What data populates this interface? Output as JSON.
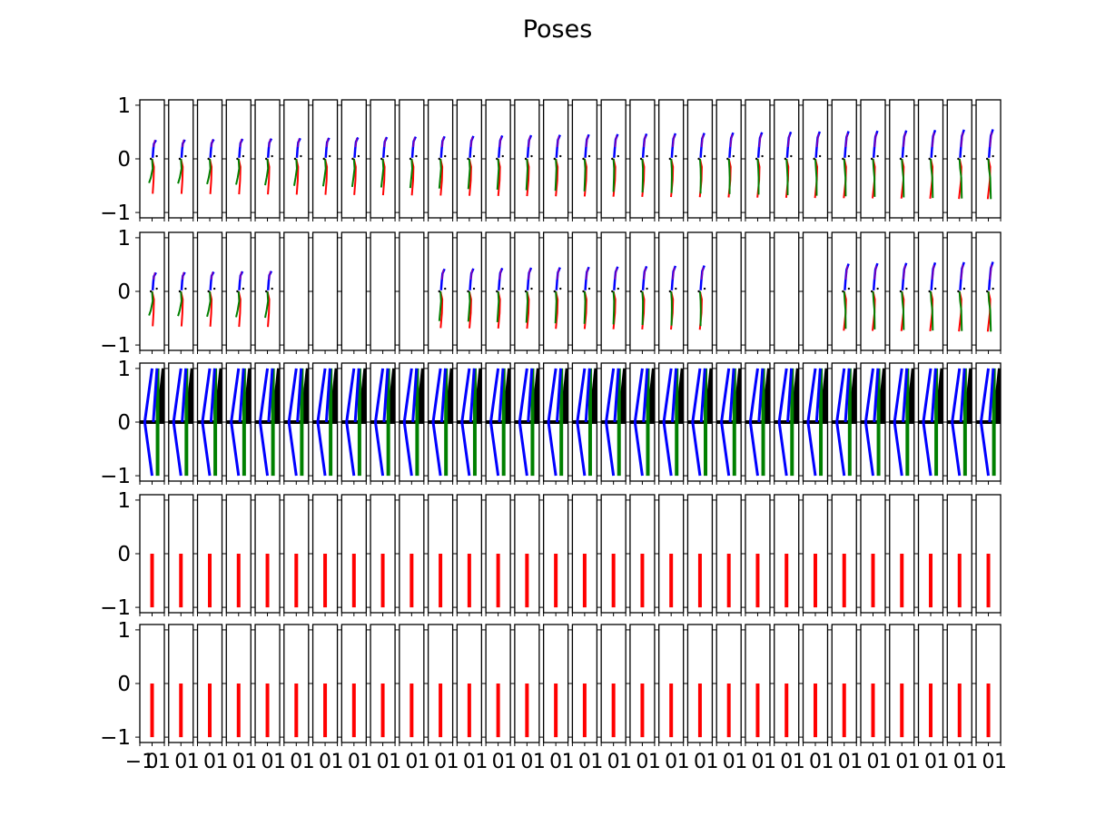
{
  "chart_data": {
    "type": "line",
    "title": "Poses",
    "grid": {
      "rows": 5,
      "cols": 30
    },
    "xlim": [
      -1,
      1
    ],
    "ylim": [
      -1.1,
      1.1
    ],
    "ytick_labels": [
      "1",
      "0",
      "−1"
    ],
    "yticks": [
      1,
      0,
      -1
    ],
    "xtick_labels_first": [
      "−1",
      "0",
      "1"
    ],
    "xtick_labels_other": [
      "0",
      "1"
    ],
    "colors": {
      "red": "#ff0000",
      "green": "#008000",
      "blue": "#0000ff",
      "black": "#000000",
      "purple": "#8800aa"
    },
    "row_types": [
      "pose",
      "pose-sparse",
      "skeleton-template",
      "red-bar",
      "red-bar"
    ],
    "row2_empty_cols": [
      5,
      6,
      7,
      8,
      9,
      20,
      21,
      22,
      23
    ],
    "pose_description": "Per-frame skeleton stick figures; each panel shows red (leg), green (leg), blue (upper body) segments drifting slightly across frames.",
    "template_skeleton": {
      "blue": [
        [
          0.0,
          -1.0
        ],
        [
          -0.6,
          0.0
        ],
        [
          0.0,
          1.0
        ]
      ],
      "green": [
        [
          0.45,
          -1.0
        ],
        [
          0.45,
          1.0
        ]
      ],
      "black": [
        [
          0.55,
          0.0
        ],
        [
          1.0,
          1.0
        ]
      ],
      "axis_line": [
        [
          -1.0,
          0.0
        ],
        [
          1.0,
          0.0
        ]
      ]
    },
    "red_bar": {
      "x": 0.0,
      "y": [
        -1.0,
        0.0
      ]
    }
  }
}
